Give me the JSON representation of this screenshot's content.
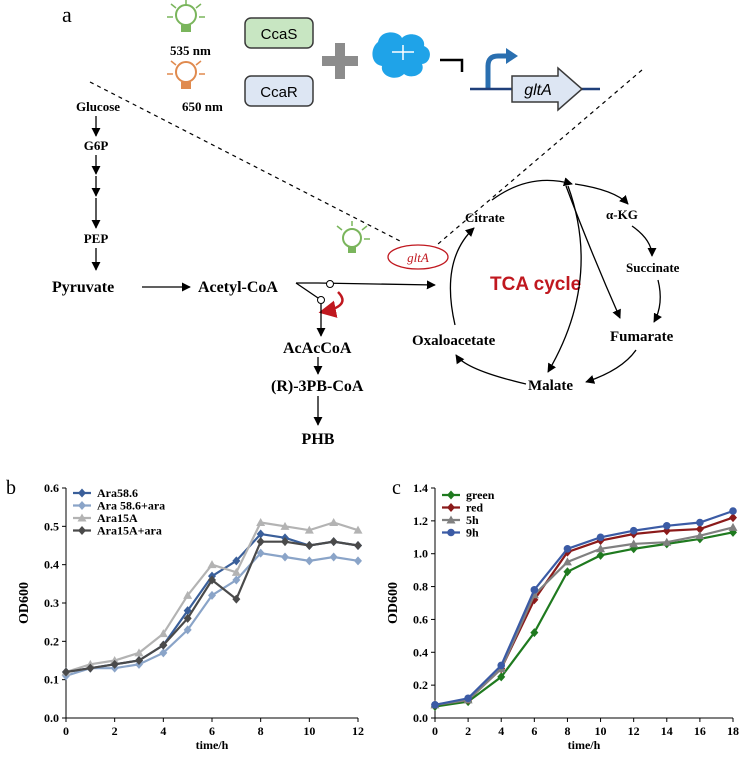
{
  "panel_labels": {
    "a": "a",
    "b": "b",
    "c": "c"
  },
  "scheme": {
    "light_green": "535 nm",
    "light_red": "650 nm",
    "box_ccas": "CcaS",
    "box_ccar": "CcaR",
    "gene": "gltA",
    "gene_small": "gltA",
    "tca_label": "TCA cycle",
    "glycolysis": [
      "Glucose",
      "G6P",
      "PEP"
    ],
    "pyruvate": "Pyruvate",
    "acetyl_coa": "Acetyl-CoA",
    "acacoa": "AcAcCoA",
    "r3pb": "(R)-3PB-CoA",
    "phb": "PHB",
    "citrate": "Citrate",
    "akg": "α-KG",
    "succinate": "Succinate",
    "fumarate": "Fumarate",
    "malate": "Malate",
    "oxaloacetate": "Oxaloacetate",
    "colors": {
      "green_bulb": "#7ab55c",
      "red_bulb": "#e08a4e",
      "tca_red": "#c0181f",
      "protein_blue": "#1fa3e8",
      "box_green": "#c8e6c2",
      "box_blue": "#dde6f3"
    }
  },
  "chart_data": [
    {
      "type": "line",
      "xlabel": "time/h",
      "ylabel": "OD600",
      "xlim": [
        0,
        12
      ],
      "ylim": [
        0,
        0.6
      ],
      "xticks": [
        "0",
        "2",
        "4",
        "6",
        "8",
        "10",
        "12"
      ],
      "yticks": [
        "0.0",
        "0.1",
        "0.2",
        "0.3",
        "0.4",
        "0.5",
        "0.6"
      ],
      "x": [
        0,
        1,
        2,
        3,
        4,
        5,
        6,
        7,
        8,
        9,
        10,
        11,
        12
      ],
      "legend_position": "top-left",
      "series": [
        {
          "name": "Ara58.6",
          "color": "#3a5f9a",
          "marker": "diamond",
          "values": [
            0.12,
            0.13,
            0.14,
            0.15,
            0.19,
            0.28,
            0.37,
            0.41,
            0.48,
            0.47,
            0.45,
            0.46,
            0.45
          ]
        },
        {
          "name": "Ara 58.6+ara",
          "color": "#8aa4c8",
          "marker": "diamond",
          "values": [
            0.11,
            0.13,
            0.13,
            0.14,
            0.17,
            0.23,
            0.32,
            0.36,
            0.43,
            0.42,
            0.41,
            0.42,
            0.41
          ]
        },
        {
          "name": "Ara15A",
          "color": "#b3b3b3",
          "marker": "triangle",
          "values": [
            0.12,
            0.14,
            0.15,
            0.17,
            0.22,
            0.32,
            0.4,
            0.38,
            0.51,
            0.5,
            0.49,
            0.51,
            0.49
          ]
        },
        {
          "name": "Ara15A+ara",
          "color": "#4a4a4a",
          "marker": "diamond",
          "values": [
            0.12,
            0.13,
            0.14,
            0.15,
            0.19,
            0.26,
            0.36,
            0.31,
            0.46,
            0.46,
            0.45,
            0.46,
            0.45
          ]
        }
      ]
    },
    {
      "type": "line",
      "xlabel": "time/h",
      "ylabel": "OD600",
      "xlim": [
        0,
        18
      ],
      "ylim": [
        0,
        1.4
      ],
      "xticks": [
        "0",
        "2",
        "4",
        "6",
        "8",
        "10",
        "12",
        "14",
        "16",
        "18"
      ],
      "yticks": [
        "0.0",
        "0.2",
        "0.4",
        "0.6",
        "0.8",
        "1.0",
        "1.2",
        "1.4"
      ],
      "x": [
        0,
        2,
        4,
        6,
        8,
        10,
        12,
        14,
        16,
        18
      ],
      "legend_position": "top-left",
      "series": [
        {
          "name": "green",
          "color": "#1f7a1f",
          "marker": "diamond",
          "values": [
            0.07,
            0.1,
            0.25,
            0.52,
            0.89,
            0.99,
            1.03,
            1.06,
            1.09,
            1.13
          ]
        },
        {
          "name": "red",
          "color": "#8b1a1a",
          "marker": "diamond",
          "values": [
            0.08,
            0.11,
            0.3,
            0.72,
            1.01,
            1.08,
            1.12,
            1.14,
            1.15,
            1.22
          ]
        },
        {
          "name": "5h",
          "color": "#808080",
          "marker": "triangle",
          "values": [
            0.08,
            0.11,
            0.3,
            0.75,
            0.95,
            1.03,
            1.06,
            1.07,
            1.11,
            1.16
          ]
        },
        {
          "name": "9h",
          "color": "#3b5ba5",
          "marker": "circle",
          "values": [
            0.08,
            0.12,
            0.32,
            0.78,
            1.03,
            1.1,
            1.14,
            1.17,
            1.19,
            1.26
          ]
        }
      ]
    }
  ]
}
